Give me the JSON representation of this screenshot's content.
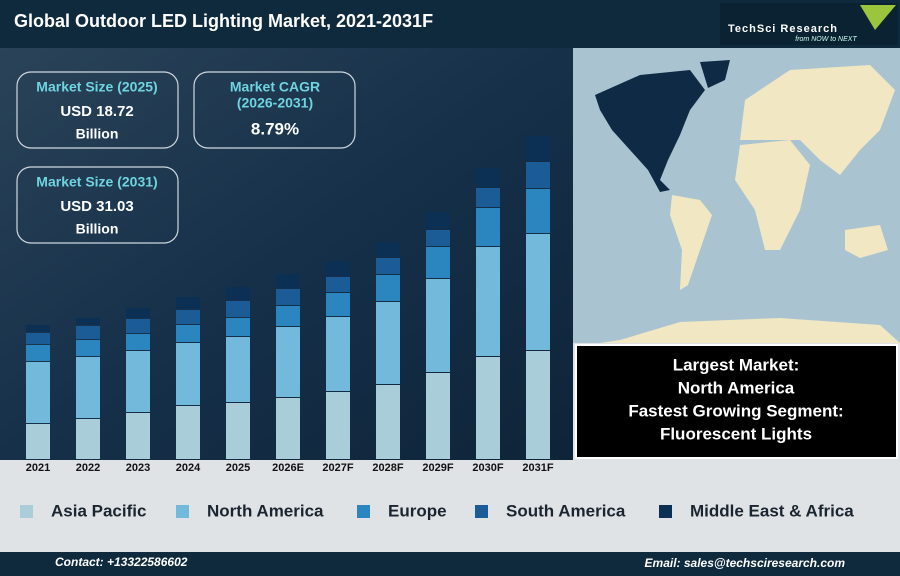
{
  "chart_data": {
    "type": "bar",
    "stacked": true,
    "title": "Global Outdoor LED Lighting Market, 2021-2031F",
    "categories": [
      "2021",
      "2022",
      "2023",
      "2024",
      "2025",
      "2026E",
      "2027F",
      "2028F",
      "2029F",
      "2030F",
      "2031F"
    ],
    "series": [
      {
        "name": "Asia Pacific",
        "color": "#a9cdd9",
        "values": [
          36,
          41,
          47,
          54,
          57,
          62,
          68,
          75,
          87,
          103,
          109
        ]
      },
      {
        "name": "North America",
        "color": "#72b9db",
        "values": [
          62,
          62,
          62,
          63,
          66,
          71,
          75,
          83,
          94,
          110,
          117
        ]
      },
      {
        "name": "Europe",
        "color": "#2b86c0",
        "values": [
          17,
          17,
          17,
          18,
          19,
          21,
          24,
          27,
          32,
          39,
          45
        ]
      },
      {
        "name": "South America",
        "color": "#1b5c96",
        "values": [
          12,
          14,
          15,
          15,
          17,
          17,
          16,
          17,
          17,
          20,
          27
        ]
      },
      {
        "name": "Middle East & Africa",
        "color": "#0c2f54",
        "values": [
          8,
          8,
          11,
          13,
          14,
          15,
          16,
          16,
          18,
          20,
          26
        ]
      }
    ]
  },
  "logo": {
    "name": "TechSci Research",
    "tagline": "from NOW to NEXT"
  },
  "cards": [
    {
      "title": "Market Size (2025)",
      "value": "USD 18.72",
      "unit": "Billion"
    },
    {
      "title": [
        "Market CAGR",
        "(2026-2031)"
      ],
      "value": "8.79%"
    },
    {
      "title": "Market Size (2031)",
      "value": "USD 31.03",
      "unit": "Billion"
    }
  ],
  "highlights": [
    "Largest Market:",
    "North America",
    "Fastest Growing Segment:",
    "Fluorescent Lights"
  ],
  "footer": {
    "contact": "Contact: +13322586602",
    "email": "Email: sales@techsciresearch.com"
  }
}
